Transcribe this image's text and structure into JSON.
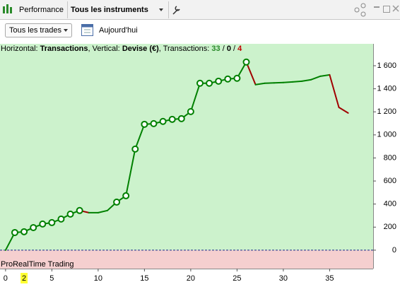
{
  "toolbar": {
    "tab": "Performance",
    "instruments": "Tous les instruments",
    "trades": "Tous les trades",
    "period": "Aujourd'hui"
  },
  "info": {
    "h_label": "Horizontal:",
    "h_value": "Transactions",
    "v_label": ", Vertical:",
    "v_value": "Devise (€)",
    "count_label": ", Transactions:",
    "winning": 33,
    "separator": "/",
    "neutral": 0,
    "losing": 4
  },
  "footer": "ProRealTime Trading",
  "chart_data": {
    "type": "line",
    "x": [
      0,
      1,
      2,
      3,
      4,
      5,
      6,
      7,
      8,
      9,
      10,
      11,
      12,
      13,
      14,
      15,
      16,
      17,
      18,
      19,
      20,
      21,
      22,
      23,
      24,
      25,
      26,
      27,
      28,
      29,
      30,
      31,
      32,
      33,
      34,
      35,
      36,
      37
    ],
    "series": [
      {
        "name": "Transactions",
        "color": "#008000",
        "down_color": "#a00000",
        "values": [
          0,
          153,
          160,
          196,
          227,
          239,
          270,
          313,
          344,
          325,
          325,
          344,
          417,
          472,
          877,
          1092,
          1098,
          1117,
          1135,
          1141,
          1202,
          1448,
          1448,
          1466,
          1485,
          1491,
          1632,
          1436,
          1448,
          1451,
          1454,
          1460,
          1466,
          1479,
          1509,
          1521,
          1239,
          1190
        ],
        "markers": [
          false,
          true,
          true,
          true,
          true,
          true,
          true,
          true,
          true,
          false,
          false,
          false,
          true,
          true,
          true,
          true,
          true,
          true,
          true,
          true,
          true,
          true,
          true,
          true,
          true,
          true,
          true,
          false,
          false,
          false,
          false,
          false,
          false,
          false,
          false,
          false,
          false,
          false
        ]
      }
    ],
    "xlim": [
      -0.6,
      39.7
    ],
    "ylim": [
      -160,
      1790
    ],
    "xticks": [
      0,
      5,
      10,
      15,
      20,
      25,
      30,
      35
    ],
    "yticks": [
      0,
      200,
      400,
      600,
      800,
      {
        "value": 1000,
        "label": "1 000"
      },
      {
        "value": 1200,
        "label": "1 200"
      },
      {
        "value": 1400,
        "label": "1 400"
      },
      {
        "value": 1600,
        "label": "1 600"
      }
    ],
    "highlight_x": 2,
    "zero_line": 0,
    "positive_fill": "#ccf2cc",
    "negative_fill": "#f5cfcf"
  }
}
